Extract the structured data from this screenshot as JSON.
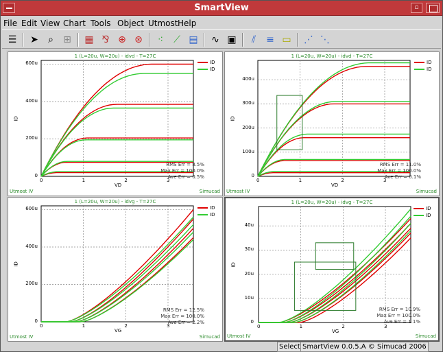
{
  "window": {
    "title": "SmartView"
  },
  "menu": [
    "File",
    "Edit",
    "View",
    "Chart",
    "Tools",
    "Object",
    "Utmost",
    "Help"
  ],
  "toolbar_icons": [
    "layout-icon",
    "pointer-icon",
    "zoom-icon",
    "grid-icon",
    "bar-icon",
    "chart-icon",
    "target-icon",
    "globe-icon",
    "scatter-icon",
    "line-chart-icon",
    "histogram-icon",
    "wave-icon",
    "calculator-icon",
    "curves-icon",
    "sliders-icon",
    "note-icon",
    "fit-icon",
    "optimize-icon"
  ],
  "charts": [
    {
      "title": "1 (L=20u, W=20u) - idvd - T=27C",
      "xlabel": "VD",
      "ylabel": "ID",
      "left": "Utmost IV",
      "right": "Simucad",
      "legend": [
        "ID",
        "ID"
      ],
      "stats": [
        "RMS Err = 8.5%",
        "Max Err = 100.0%",
        "Ave Err = 0.5%"
      ],
      "xticks": [
        "0",
        "1",
        "2",
        "3"
      ],
      "yticks": [
        "0",
        "200u",
        "400u",
        "600u"
      ]
    },
    {
      "title": "1 (L=20u, W=20u) - idvd - T=27C",
      "xlabel": "VD",
      "ylabel": "ID",
      "left": "Utmost IV",
      "right": "Simucad",
      "legend": [
        "ID",
        "ID"
      ],
      "stats": [
        "RMS Err = 11.0%",
        "Max Err = 100.0%",
        "Ave Err = 0.1%"
      ],
      "xticks": [
        "0",
        "1",
        "2",
        "3"
      ],
      "yticks": [
        "0",
        "100u",
        "200u",
        "300u",
        "400u"
      ]
    },
    {
      "title": "1 (L=20u, W=20u) - idvg - T=27C",
      "xlabel": "VG",
      "ylabel": "ID",
      "left": "Utmost IV",
      "right": "Simucad",
      "legend": [
        "ID",
        "ID"
      ],
      "stats": [
        "RMS Err = 12.5%",
        "Max Err = 100.0%",
        "Ave Err = 2.2%"
      ],
      "xticks": [
        "0",
        "1",
        "2",
        "3"
      ],
      "yticks": [
        "0",
        "200u",
        "400u",
        "600u"
      ]
    },
    {
      "title": "1 (L=20u, W=20u) - idvg - T=27C",
      "xlabel": "VG",
      "ylabel": "ID",
      "left": "Utmost IV",
      "right": "Simucad",
      "legend": [
        "ID",
        "ID"
      ],
      "stats": [
        "RMS Err = 10.9%",
        "Max Err = 100.0%",
        "Ave Err = 1.1%"
      ],
      "xticks": [
        "0",
        "1",
        "2",
        "3"
      ],
      "yticks": [
        "0",
        "10u",
        "20u",
        "30u",
        "40u"
      ]
    }
  ],
  "chart_data": [
    {
      "type": "line",
      "xlim": [
        0,
        3.6
      ],
      "ylim": [
        0,
        620
      ],
      "grid": true,
      "legend_position": "top-right",
      "series": [
        {
          "color": "#e00000",
          "sat": [
            600,
            385,
            205,
            75,
            20
          ]
        },
        {
          "color": "#33cc33",
          "sat": [
            550,
            365,
            195,
            80,
            25
          ]
        }
      ]
    },
    {
      "type": "line",
      "xlim": [
        0,
        3.6
      ],
      "ylim": [
        0,
        480
      ],
      "grid": true,
      "legend_position": "top-right",
      "series": [
        {
          "color": "#e00000",
          "sat": [
            455,
            300,
            160,
            65,
            15
          ]
        },
        {
          "color": "#33cc33",
          "sat": [
            470,
            310,
            175,
            70,
            20
          ]
        }
      ]
    },
    {
      "type": "line",
      "xlim": [
        0,
        3.6
      ],
      "ylim": [
        0,
        620
      ],
      "grid": true,
      "legend_position": "top-right",
      "series": [
        {
          "color": "#e00000",
          "end": [
            600,
            550,
            500,
            450
          ]
        },
        {
          "color": "#33cc33",
          "end": [
            560,
            520,
            480,
            440
          ]
        }
      ]
    },
    {
      "type": "line",
      "xlim": [
        0,
        3.6
      ],
      "ylim": [
        0,
        48
      ],
      "grid": true,
      "legend_position": "top-right",
      "series": [
        {
          "color": "#e00000",
          "end": [
            43,
            41,
            39,
            37,
            35
          ]
        },
        {
          "color": "#33cc33",
          "end": [
            47,
            44,
            41,
            38
          ]
        }
      ]
    }
  ],
  "status": {
    "mode": "Select",
    "about": "SmartView 0.0.5.A © Simucad 2006"
  },
  "colors": {
    "title": "#c0393b",
    "green": "#33cc33",
    "red": "#e00000"
  }
}
